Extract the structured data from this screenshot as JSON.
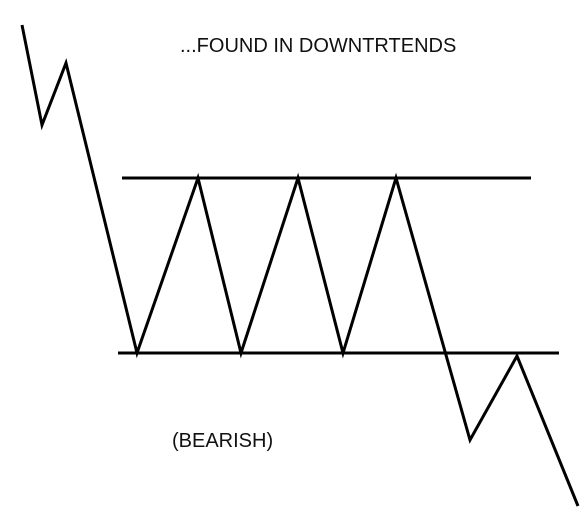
{
  "diagram": {
    "title": "...FOUND IN DOWNTRTENDS",
    "pattern_label": "(BEARISH)",
    "stroke_color": "#000000",
    "background_color": "#ffffff"
  }
}
